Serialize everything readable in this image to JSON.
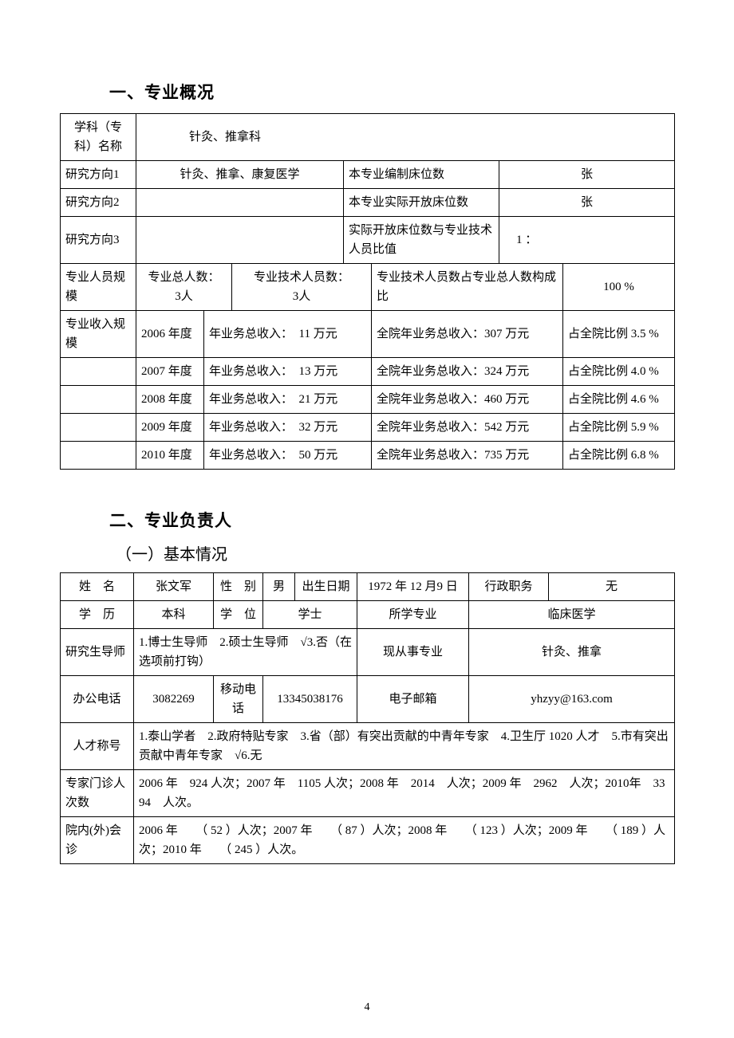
{
  "section1": {
    "title": "一、专业概况",
    "labels": {
      "subject_name": "学科（专科）名称",
      "direction1": "研究方向1",
      "direction2": "研究方向2",
      "direction3": "研究方向3",
      "staff_scale": "专业人员规模",
      "income_scale": "专业收入规模",
      "beds_auth": "本专业编制床位数",
      "beds_open": "本专业实际开放床位数",
      "beds_ratio": "实际开放床位数与专业技术人员比值",
      "total_staff_prefix": "专业总人数：",
      "tech_staff_prefix": "专业技术人员数：",
      "tech_ratio": "专业技术人员数占专业总人数构成比",
      "unit_zhang": "张",
      "ratio_prefix": "1 ：",
      "year_income_prefix": "年业务总收入：",
      "hospital_income_prefix": "全院年业务总收入：",
      "hospital_share_prefix": "占全院比例",
      "wan_yuan": " 万元",
      "year_suffix": " 年度",
      "percent": " %"
    },
    "values": {
      "subject_name": "针灸、推拿科",
      "direction1": "针灸、推拿、康复医学",
      "direction2": "",
      "direction3": "",
      "beds_auth": "",
      "beds_open": "",
      "beds_ratio": "",
      "total_staff": "3人",
      "tech_staff": "3人",
      "tech_ratio_pct": "100"
    },
    "income_rows": [
      {
        "year": "2006",
        "dept": "11",
        "hospital": "307",
        "share": "3.5"
      },
      {
        "year": "2007",
        "dept": "13",
        "hospital": "324",
        "share": "4.0"
      },
      {
        "year": "2008",
        "dept": "21",
        "hospital": "460",
        "share": "4.6"
      },
      {
        "year": "2009",
        "dept": "32",
        "hospital": "542",
        "share": "5.9"
      },
      {
        "year": "2010",
        "dept": "50",
        "hospital": "735",
        "share": "6.8"
      }
    ]
  },
  "section2": {
    "title": "二、专业负责人",
    "subtitle": "（一）基本情况",
    "labels": {
      "name": "姓　名",
      "gender": "性　别",
      "dob": "出生日期",
      "admin_post": "行政职务",
      "education": "学　历",
      "degree": "学　位",
      "major": "所学专业",
      "grad_advisor": "研究生导师",
      "current_field": "现从事专业",
      "office_phone": "办公电话",
      "mobile": "移动电话",
      "email": "电子邮箱",
      "talent_title": "人才称号",
      "expert_visits": "专家门诊人次数",
      "consults": "院内(外)会诊"
    },
    "values": {
      "name": "张文军",
      "gender": "男",
      "dob": "1972 年 12 月9 日",
      "admin_post": "无",
      "education": "本科",
      "degree": "学士",
      "major": "临床医学",
      "grad_advisor": "1.博士生导师　2.硕士生导师　√3.否（在选项前打钩）",
      "current_field": "针灸、推拿",
      "office_phone": "3082269",
      "mobile": "13345038176",
      "email": "yhzyy@163.com",
      "talent_title": "1.泰山学者　2.政府特贴专家　3.省（部）有突出贡献的中青年专家　4.卫生厅 1020 人才　5.市有突出贡献中青年专家　√6.无",
      "expert_visits": "2006 年　924 人次；2007 年　1105 人次；2008 年　2014　人次；2009 年　2962　人次；2010年　3394　人次。",
      "consults": "2006 年　　（ 52 ）人次；2007 年　　（ 87 ）人次；2008 年　　（ 123 ）人次；2009 年　　（ 189 ）人次；2010 年　　（ 245 ）人次。"
    }
  },
  "page_number": "4"
}
